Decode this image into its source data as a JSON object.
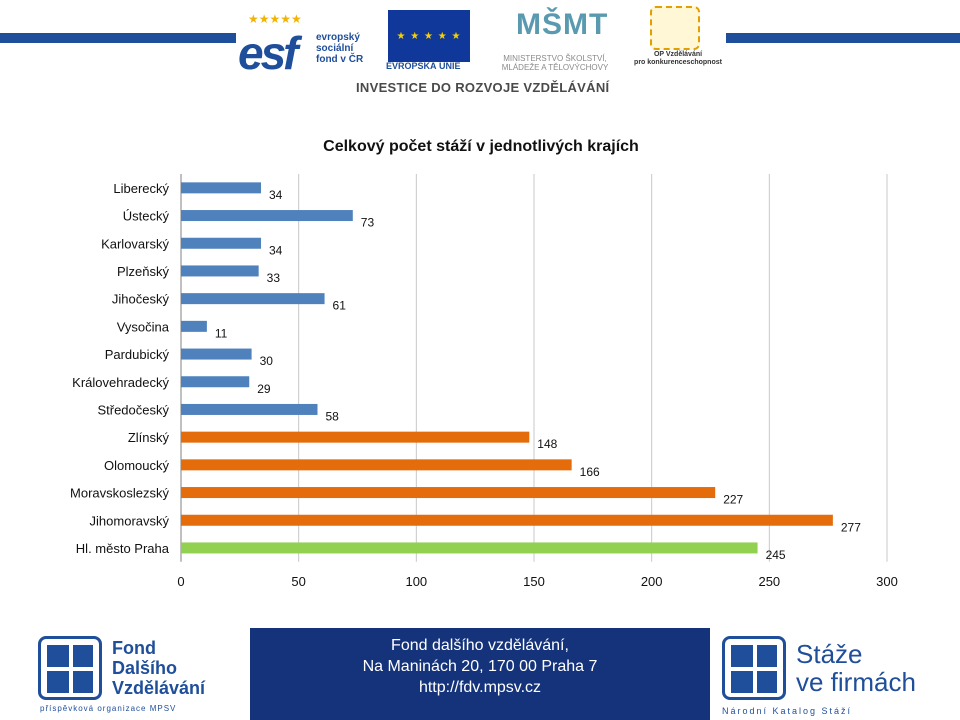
{
  "header": {
    "esf_logo": "esf",
    "esf_text": [
      "evropský",
      "sociální",
      "fond v ČR"
    ],
    "eu_text": "EVROPSKÁ UNIE",
    "msmt_logo": "MŠMT",
    "msmt_text": [
      "MINISTERSTVO ŠKOLSTVÍ,",
      "MLÁDEŽE A TĚLOVÝCHOVY"
    ],
    "op_text": [
      "OP Vzdělávání",
      "pro konkurenceschopnost"
    ],
    "investice": "INVESTICE DO ROZVOJE VZDĚLÁVÁNÍ",
    "accent_color": "#1f4e9a"
  },
  "chart_data": {
    "type": "bar",
    "orientation": "horizontal",
    "title": "Celkový počet stáží v jednotlivých krajích",
    "categories": [
      "Liberecký",
      "Ústecký",
      "Karlovarský",
      "Plzeňský",
      "Jihočeský",
      "Vysočina",
      "Pardubický",
      "Královehradecký",
      "Středočeský",
      "Zlínský",
      "Olomoucký",
      "Moravskoslezský",
      "Jihomoravský",
      "Hl. město Praha"
    ],
    "values": [
      34,
      73,
      34,
      33,
      61,
      11,
      30,
      29,
      58,
      148,
      166,
      227,
      277,
      245
    ],
    "colors": [
      "#4f81bd",
      "#4f81bd",
      "#4f81bd",
      "#4f81bd",
      "#4f81bd",
      "#4f81bd",
      "#4f81bd",
      "#4f81bd",
      "#4f81bd",
      "#e46c0a",
      "#e46c0a",
      "#e46c0a",
      "#e46c0a",
      "#92d050"
    ],
    "xlim": [
      0,
      300
    ],
    "xticks": [
      0,
      50,
      100,
      150,
      200,
      250,
      300
    ],
    "grid": "vertical",
    "legend": "none"
  },
  "footer": {
    "fdv_logo_words": [
      "Fond",
      "Dalšího",
      "Vzdělávání"
    ],
    "fdv_sub": "příspěvková organizace MPSV",
    "contact": [
      "Fond dalšího vzdělávání,",
      "Na Maninách 20, 170 00  Praha 7",
      "http://fdv.mpsv.cz"
    ],
    "staze_text": [
      "Stáže",
      "ve firmách"
    ],
    "staze_sub": "Národní Katalog Stáží",
    "band_color": "#14337a"
  }
}
